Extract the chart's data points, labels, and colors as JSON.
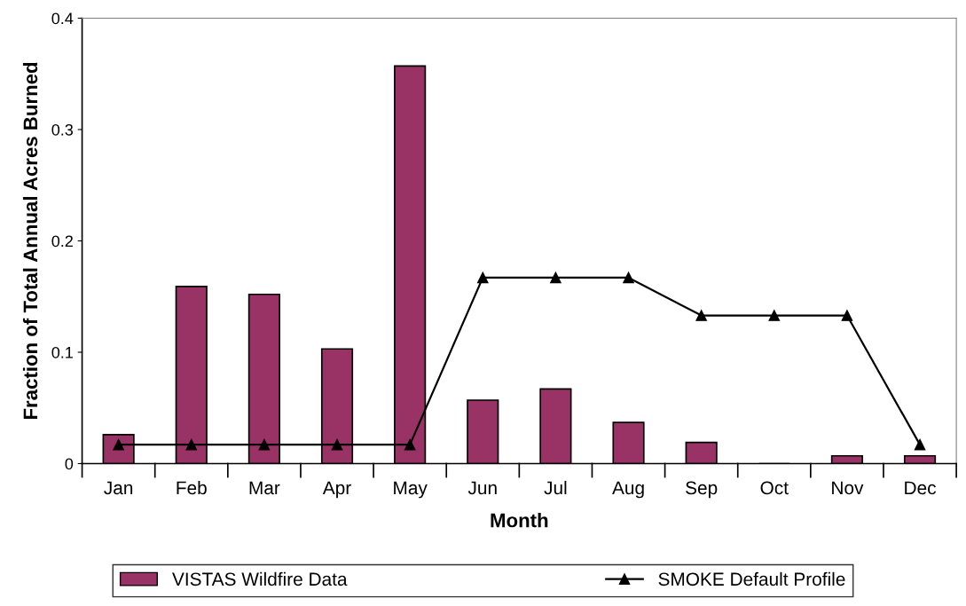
{
  "chart_data": {
    "type": "bar",
    "xlabel": "Month",
    "ylabel": "Fraction of Total Annual Acres Burned",
    "categories": [
      "Jan",
      "Feb",
      "Mar",
      "Apr",
      "May",
      "Jun",
      "Jul",
      "Aug",
      "Sep",
      "Oct",
      "Nov",
      "Dec"
    ],
    "series": [
      {
        "name": "VISTAS Wildfire Data",
        "color": "#993366",
        "values": [
          0.026,
          0.159,
          0.152,
          0.103,
          0.357,
          0.057,
          0.067,
          0.037,
          0.019,
          0,
          0.007,
          0.007
        ]
      },
      {
        "name": "SMOKE Default Profile",
        "type": "line",
        "color": "#000000",
        "marker": "triangle",
        "values": [
          0.017,
          0.017,
          0.017,
          0.017,
          0.017,
          0.167,
          0.167,
          0.167,
          0.133,
          0.133,
          0.133,
          0.017
        ]
      }
    ],
    "ylim": [
      0,
      0.4
    ],
    "yticks": [
      0,
      0.1,
      0.2,
      0.3,
      0.4
    ],
    "grid": false,
    "legend": "bottom"
  }
}
